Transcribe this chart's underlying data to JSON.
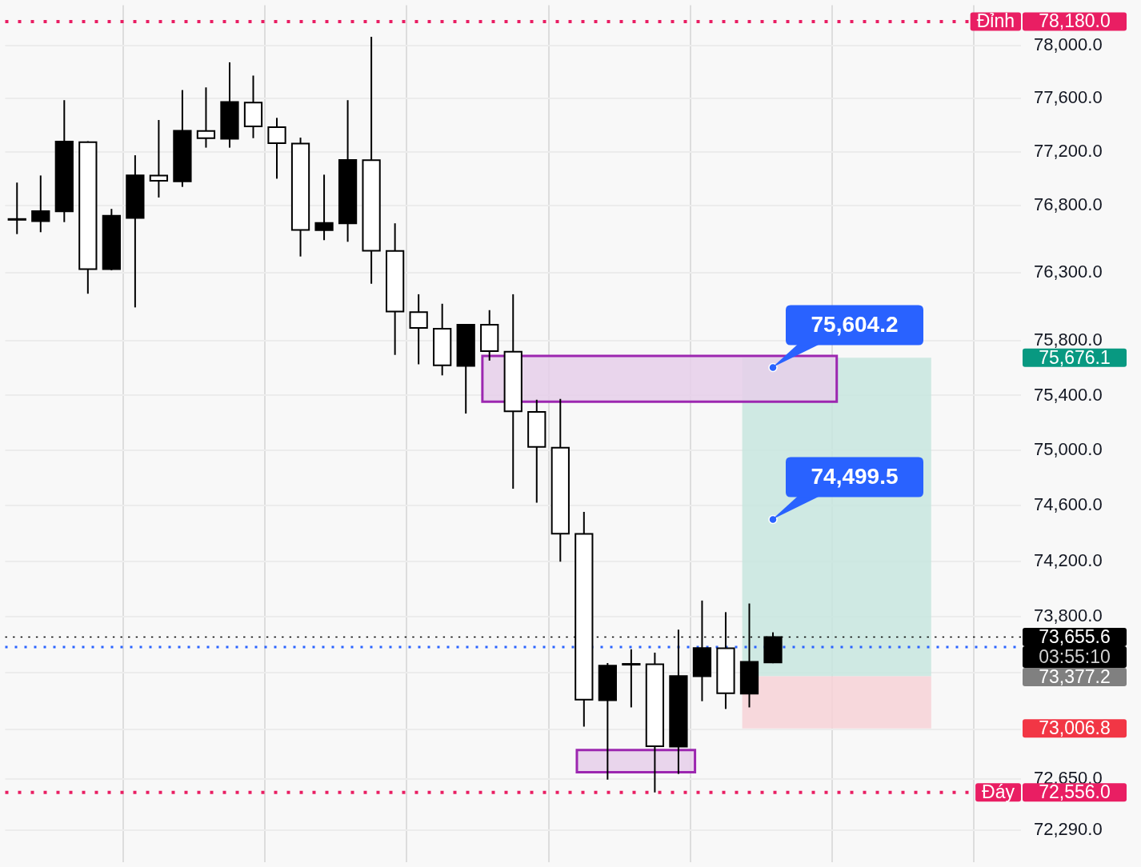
{
  "chart_data": {
    "type": "candlestick",
    "categories": [
      null,
      null,
      null,
      null,
      null,
      null,
      null,
      null,
      null,
      null,
      null,
      null,
      null,
      null,
      null,
      null,
      null,
      null,
      null,
      null,
      null,
      null,
      null,
      null,
      null,
      null,
      null,
      null,
      null,
      null,
      null,
      null,
      null,
      null,
      null,
      null,
      null,
      null,
      null,
      null,
      null,
      null,
      null
    ],
    "ohlc": [
      [
        76700,
        76971,
        76588,
        76694
      ],
      [
        76684,
        77024,
        76602,
        76759
      ],
      [
        76757,
        77588,
        76677,
        77278
      ],
      [
        77273,
        77280,
        76147,
        76328
      ],
      [
        76328,
        76775,
        76320,
        76724
      ],
      [
        76708,
        77175,
        76046,
        77025
      ],
      [
        77023,
        77439,
        76860,
        76984
      ],
      [
        76980,
        77664,
        76939,
        77358
      ],
      [
        77357,
        77684,
        77232,
        77303
      ],
      [
        77298,
        77873,
        77232,
        77575
      ],
      [
        77570,
        77773,
        77303,
        77391
      ],
      [
        77385,
        77455,
        77000,
        77266
      ],
      [
        77262,
        77307,
        76422,
        76618
      ],
      [
        76617,
        77030,
        76543,
        76670
      ],
      [
        76667,
        77588,
        76531,
        77140
      ],
      [
        77138,
        78066,
        76220,
        76465
      ],
      [
        76463,
        76668,
        75697,
        76015
      ],
      [
        76011,
        76143,
        75628,
        75895
      ],
      [
        75889,
        76073,
        75547,
        75620
      ],
      [
        75616,
        75924,
        75268,
        75918
      ],
      [
        75918,
        76026,
        75655,
        75725
      ],
      [
        75721,
        76143,
        74722,
        75284
      ],
      [
        75280,
        75369,
        74621,
        75025
      ],
      [
        75019,
        75375,
        74196,
        74398
      ],
      [
        74396,
        74554,
        73020,
        73211
      ],
      [
        73207,
        73471,
        72646,
        73453
      ],
      [
        73460,
        73569,
        73156,
        73465
      ],
      [
        73462,
        73545,
        72556,
        72882
      ],
      [
        72878,
        73709,
        72686,
        73379
      ],
      [
        73377,
        73917,
        73200,
        73578
      ],
      [
        73576,
        73834,
        73145,
        73257
      ],
      [
        73254,
        73896,
        73156,
        73479
      ],
      [
        73475,
        73690,
        73470,
        73655.6
      ],
      null,
      null,
      null,
      null,
      null,
      null,
      null,
      null,
      null,
      null
    ],
    "colors": [
      "#ffffff",
      "#000000",
      "#000000",
      "#ffffff",
      "#000000",
      "#000000",
      "#ffffff",
      "#000000",
      "#ffffff",
      "#000000",
      "#ffffff",
      "#ffffff",
      "#ffffff",
      "#000000",
      "#000000",
      "#ffffff",
      "#ffffff",
      "#ffffff",
      "#ffffff",
      "#000000",
      "#ffffff",
      "#ffffff",
      "#ffffff",
      "#ffffff",
      "#ffffff",
      "#000000",
      "#000000",
      "#ffffff",
      "#000000",
      "#000000",
      "#ffffff",
      "#000000",
      "#000000",
      null,
      null,
      null,
      null,
      null,
      null,
      null,
      null,
      null,
      null
    ],
    "series": [
      {
        "type": "scatter",
        "color": "#2962ff",
        "values": [
          null,
          null,
          null,
          null,
          null,
          null,
          null,
          null,
          null,
          null,
          null,
          null,
          null,
          null,
          null,
          null,
          null,
          null,
          null,
          null,
          null,
          null,
          null,
          null,
          null,
          null,
          null,
          null,
          null,
          null,
          null,
          null,
          75604.2,
          null,
          null,
          null,
          null,
          null,
          null,
          null,
          null,
          null,
          null
        ],
        "value_labels": [
          null,
          null,
          null,
          null,
          null,
          null,
          null,
          null,
          null,
          null,
          null,
          null,
          null,
          null,
          null,
          null,
          null,
          null,
          null,
          null,
          null,
          null,
          null,
          null,
          null,
          null,
          null,
          null,
          null,
          null,
          null,
          null,
          "75,604.2",
          null,
          null,
          null,
          null,
          null,
          null,
          null,
          null,
          null,
          null
        ]
      },
      {
        "type": "scatter",
        "color": "#2962ff",
        "values": [
          null,
          null,
          null,
          null,
          null,
          null,
          null,
          null,
          null,
          null,
          null,
          null,
          null,
          null,
          null,
          null,
          null,
          null,
          null,
          null,
          null,
          null,
          null,
          null,
          null,
          null,
          null,
          null,
          null,
          null,
          null,
          null,
          74499.5,
          null,
          null,
          null,
          null,
          null,
          null,
          null,
          null,
          null,
          null
        ],
        "value_labels": [
          null,
          null,
          null,
          null,
          null,
          null,
          null,
          null,
          null,
          null,
          null,
          null,
          null,
          null,
          null,
          null,
          null,
          null,
          null,
          null,
          null,
          null,
          null,
          null,
          null,
          null,
          null,
          null,
          null,
          null,
          null,
          null,
          "74,499.5",
          null,
          null,
          null,
          null,
          null,
          null,
          null,
          null,
          null,
          null
        ]
      }
    ],
    "marker": "circle",
    "log": "y",
    "ylim": [
      72070,
      78305
    ],
    "yticks": [
      {
        "value": 78000,
        "label": "78,000.0"
      },
      {
        "value": 77600,
        "label": "77,600.0"
      },
      {
        "value": 77200,
        "label": "77,200.0"
      },
      {
        "value": 76800,
        "label": "76,800.0"
      },
      {
        "value": 76300,
        "label": "76,300.0"
      },
      {
        "value": 75800,
        "label": "75,800.0"
      },
      {
        "value": 75400,
        "label": "75,400.0"
      },
      {
        "value": 75000,
        "label": "75,000.0"
      },
      {
        "value": 74600,
        "label": "74,600.0"
      },
      {
        "value": 74200,
        "label": "74,200.0"
      },
      {
        "value": 73800,
        "label": "73,800.0"
      },
      {
        "value": 73400,
        "label": null
      },
      {
        "value": 73000,
        "label": null
      },
      {
        "value": 72650,
        "label": "72,650.0"
      },
      {
        "value": 72290,
        "label": "72,290.0"
      }
    ],
    "grid": true,
    "legend": false,
    "ref_lines": [
      {
        "axis": "y",
        "value": 78180,
        "label": "Đỉnh",
        "color": "#e91e63",
        "line_style": "dotted"
      },
      {
        "axis": "y",
        "value": 72556,
        "label": "Đáy",
        "color": "#e91e63",
        "line_style": "dotted"
      },
      {
        "axis": "y",
        "value": 73655.6,
        "color": "#000000",
        "line_style": "dotted"
      },
      {
        "axis": "y",
        "value": 73585,
        "color": "#2962ff",
        "line_style": "dotted"
      }
    ],
    "bands": [
      {
        "axis": "y",
        "from": 73377.2,
        "to": 75676.1,
        "color": "#c8e6df"
      },
      {
        "axis": "y",
        "from": 73006.8,
        "to": 73377.2,
        "color": "#f7d2d7"
      },
      {
        "axis": "y",
        "from": 75354,
        "to": 75690,
        "color": "#e6cfea"
      },
      {
        "axis": "y",
        "from": 72698,
        "to": 72854,
        "color": "#e6cfea"
      }
    ],
    "annotations": [
      "78,180.0",
      "75,676.1",
      "73,655.6",
      "03:55:10",
      "73,377.2",
      "73,006.8",
      "72,556.0"
    ]
  }
}
